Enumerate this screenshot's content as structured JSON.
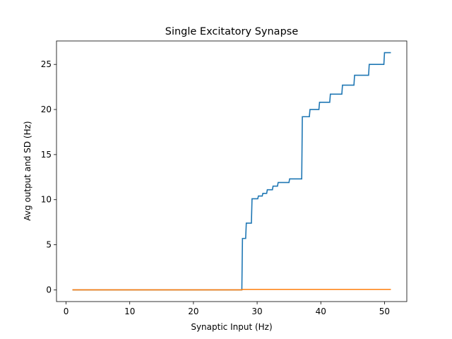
{
  "chart_data": {
    "type": "line",
    "title": "Single Excitatory Synapse",
    "xlabel": "Synaptic Input (Hz)",
    "ylabel": "Avg output and SD (Hz)",
    "xlim": [
      -1.5,
      53.5
    ],
    "ylim": [
      -1.3,
      27.6
    ],
    "xticks": [
      0,
      10,
      20,
      30,
      40,
      50
    ],
    "yticks": [
      0,
      5,
      10,
      15,
      20,
      25
    ],
    "grid": false,
    "series": [
      {
        "color": "#1f77b4",
        "x": [
          1,
          27.6,
          27.7,
          28.2,
          28.3,
          29.1,
          29.2,
          30.1,
          30.2,
          30.8,
          30.9,
          31.5,
          31.6,
          32.4,
          32.5,
          33.2,
          33.3,
          34.1,
          34.2,
          35.0,
          35.1,
          36.0,
          36.1,
          37.0,
          37.1,
          38.2,
          38.3,
          39.7,
          39.8,
          41.4,
          41.5,
          43.3,
          43.4,
          45.2,
          45.3,
          47.5,
          47.6,
          49.9,
          50.0,
          51.0
        ],
        "y": [
          0,
          0,
          5.7,
          5.7,
          7.4,
          7.4,
          10.1,
          10.1,
          10.4,
          10.4,
          10.7,
          10.7,
          11.1,
          11.1,
          11.5,
          11.5,
          11.9,
          11.9,
          11.9,
          11.9,
          12.3,
          12.3,
          12.3,
          12.3,
          19.2,
          19.2,
          20.0,
          20.0,
          20.8,
          20.8,
          21.7,
          21.7,
          22.7,
          22.7,
          23.8,
          23.8,
          25.0,
          25.0,
          26.3,
          26.3
        ]
      },
      {
        "color": "#ff7f0e",
        "x": [
          1,
          27.6,
          27.7,
          51.0
        ],
        "y": [
          0,
          0,
          0.05,
          0.05
        ]
      }
    ]
  }
}
